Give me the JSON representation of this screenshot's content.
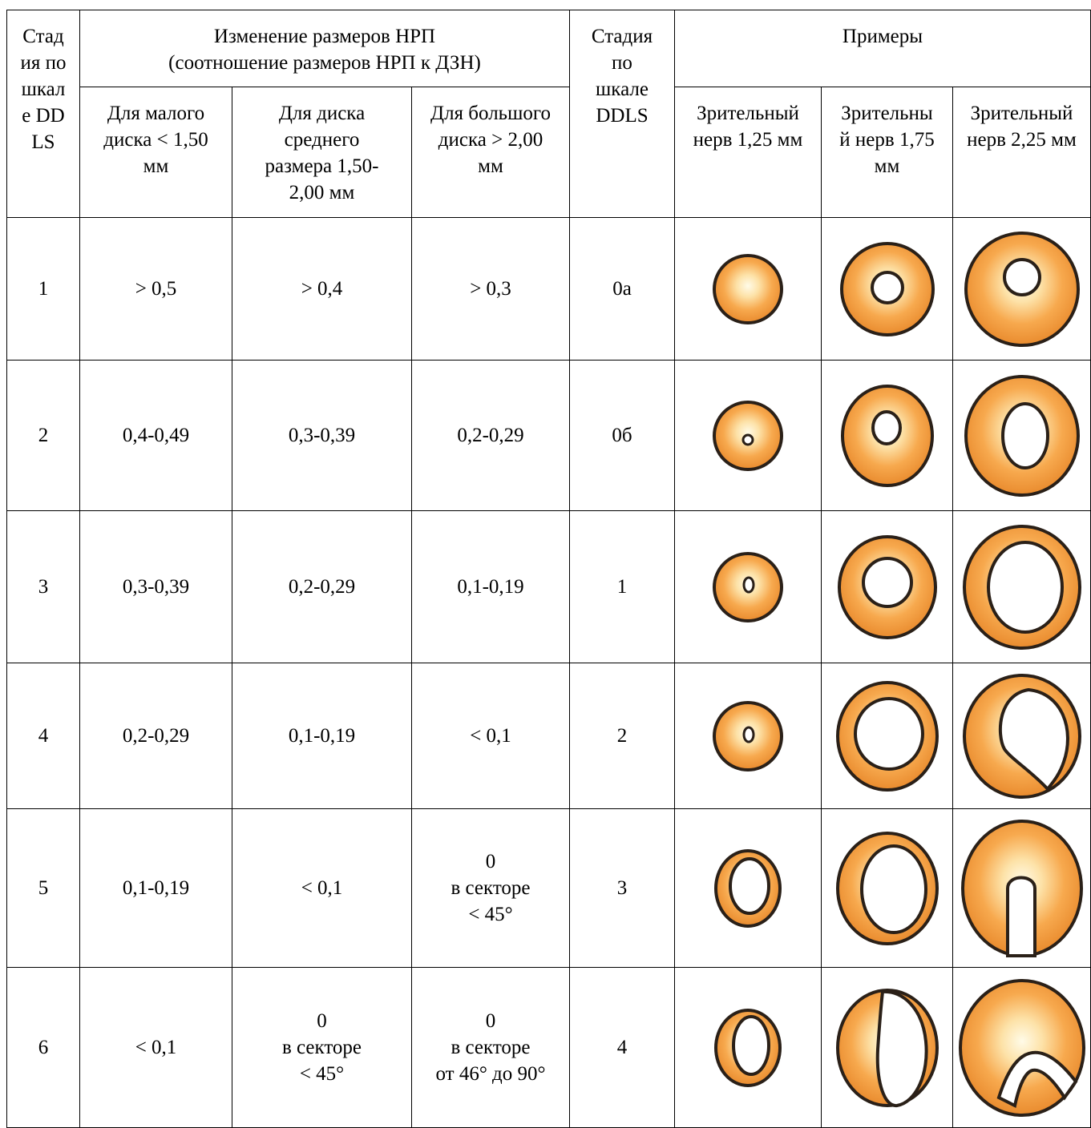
{
  "header": {
    "stage_col": "Стадия по шкале DDLS",
    "change_group": "Изменение размеров НРП\n(соотношение размеров НРП к ДЗН)",
    "small_disc": "Для малого\nдиска < 1,50\nмм",
    "medium_disc": "Для диска\nсреднего\nразмера 1,50-\n2,00 мм",
    "large_disc": "Для большого\nдиска > 2,00\nмм",
    "ddls_col": "Стадия\nпо\nшкале\nDDLS",
    "examples_group": "Примеры",
    "nerve_125": "Зрительный\nнерв 1,25 мм",
    "nerve_175": "Зрительны\nй нерв 1,75\nмм",
    "nerve_225": "Зрительный\nнерв 2,25 мм"
  },
  "rows": [
    {
      "stage": "1",
      "small": "> 0,5",
      "medium": "> 0,4",
      "large": "> 0,3",
      "ddls": "0а"
    },
    {
      "stage": "2",
      "small": "0,4-0,49",
      "medium": "0,3-0,39",
      "large": "0,2-0,29",
      "ddls": "0б"
    },
    {
      "stage": "3",
      "small": "0,3-0,39",
      "medium": "0,2-0,29",
      "large": "0,1-0,19",
      "ddls": "1"
    },
    {
      "stage": "4",
      "small": "0,2-0,29",
      "medium": "0,1-0,19",
      "large": "< 0,1",
      "ddls": "2"
    },
    {
      "stage": "5",
      "small": "0,1-0,19",
      "medium": "< 0,1",
      "large": "0\nв секторе\n< 45°",
      "ddls": "3"
    },
    {
      "stage": "6",
      "small": "< 0,1",
      "medium": "0\nв секторе\n< 45°",
      "large": "0\nв секторе\nот 46° до 90°",
      "ddls": "4"
    }
  ],
  "colors": {
    "rim_orange": "#f5a04a",
    "cup_white": "#ffffff",
    "outline": "#2a2018"
  },
  "icons": [
    "optic-disc-diagram-icon"
  ]
}
